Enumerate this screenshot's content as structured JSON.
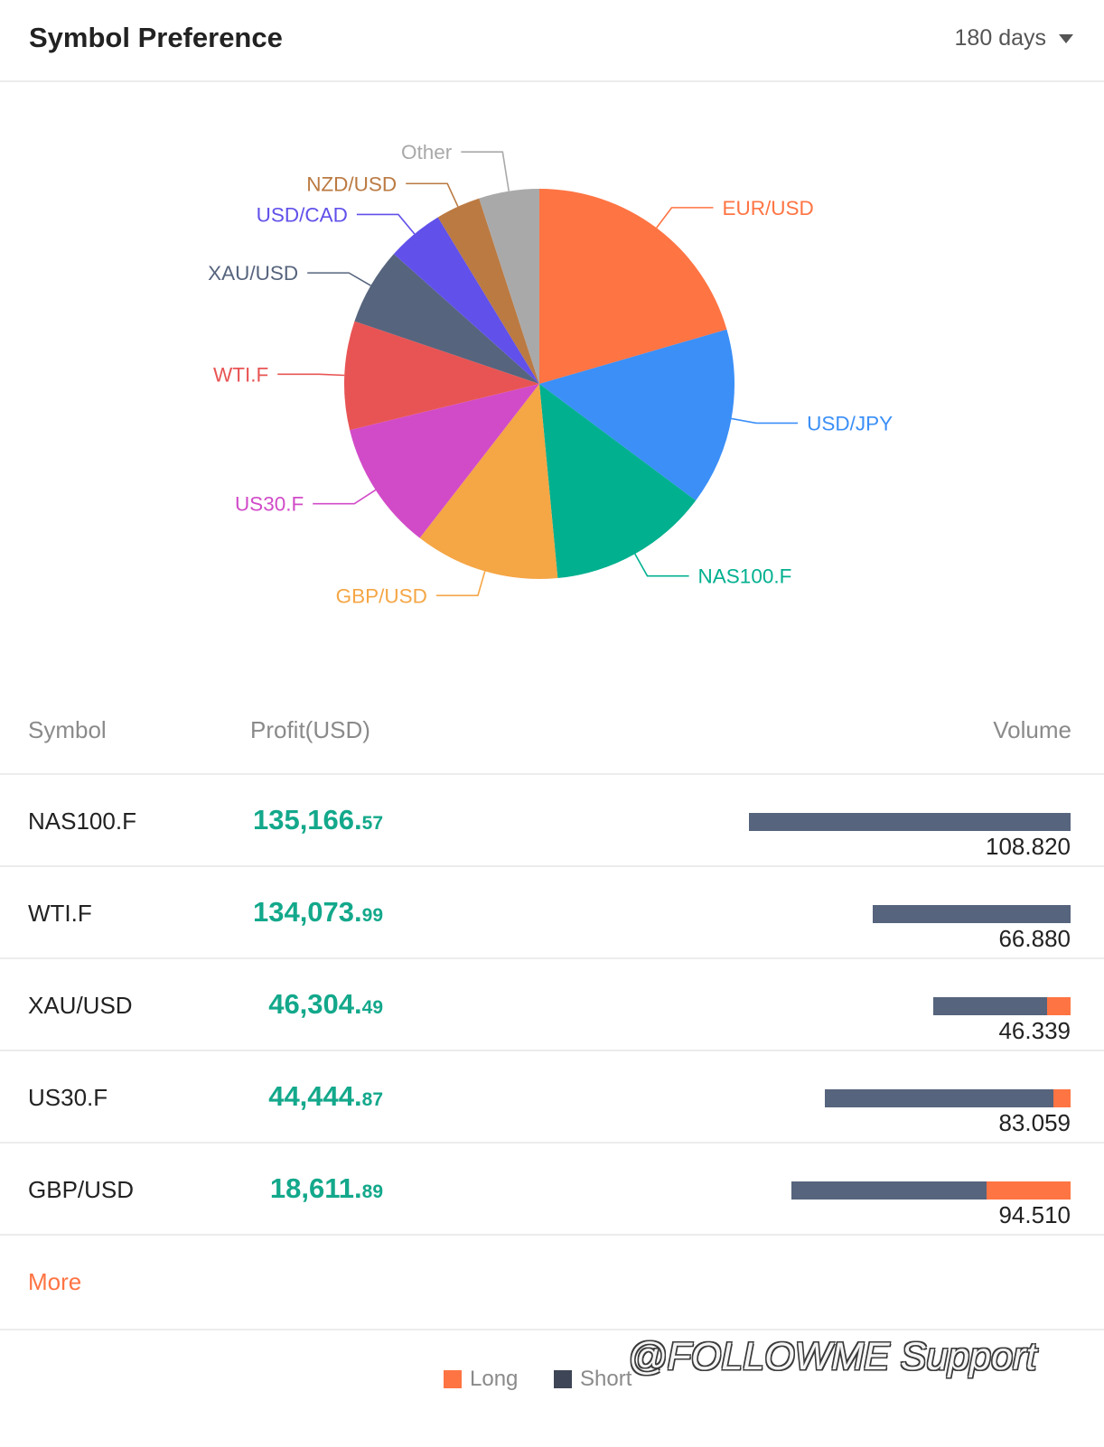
{
  "header": {
    "title": "Symbol Preference",
    "period": "180 days"
  },
  "chart_data": {
    "type": "pie",
    "slices": [
      {
        "label": "EUR/USD",
        "value": 20.5,
        "color": "#ff7443"
      },
      {
        "label": "USD/JPY",
        "value": 14.7,
        "color": "#3b8ff7"
      },
      {
        "label": "NAS100.F",
        "value": 13.3,
        "color": "#00b08f"
      },
      {
        "label": "GBP/USD",
        "value": 12.0,
        "color": "#f5a645"
      },
      {
        "label": "US30.F",
        "value": 10.7,
        "color": "#d14bc8"
      },
      {
        "label": "WTI.F",
        "value": 9.0,
        "color": "#e85454"
      },
      {
        "label": "XAU/USD",
        "value": 6.4,
        "color": "#56647d"
      },
      {
        "label": "USD/CAD",
        "value": 4.7,
        "color": "#6151ea"
      },
      {
        "label": "NZD/USD",
        "value": 3.7,
        "color": "#bb7a42"
      },
      {
        "label": "Other",
        "value": 5.0,
        "color": "#a9a9a9"
      }
    ]
  },
  "table": {
    "headers": {
      "symbol": "Symbol",
      "profit": "Profit(USD)",
      "volume": "Volume"
    },
    "rows": [
      {
        "symbol": "NAS100.F",
        "profit_int": "135,166.",
        "profit_dec": "57",
        "volume": "108.820",
        "short_frac": 1.0,
        "long_frac": 0.0
      },
      {
        "symbol": "WTI.F",
        "profit_int": "134,073.",
        "profit_dec": "99",
        "volume": "66.880",
        "short_frac": 1.0,
        "long_frac": 0.0
      },
      {
        "symbol": "XAU/USD",
        "profit_int": "46,304.",
        "profit_dec": "49",
        "volume": "46.339",
        "short_frac": 0.83,
        "long_frac": 0.17
      },
      {
        "symbol": "US30.F",
        "profit_int": "44,444.",
        "profit_dec": "87",
        "volume": "83.059",
        "short_frac": 0.93,
        "long_frac": 0.07
      },
      {
        "symbol": "GBP/USD",
        "profit_int": "18,611.",
        "profit_dec": "89",
        "volume": "94.510",
        "short_frac": 0.7,
        "long_frac": 0.3
      }
    ],
    "max_volume": 108.82,
    "long_color": "#ff7443",
    "short_color": "#56647d"
  },
  "more_label": "More",
  "legend": {
    "long": "Long",
    "short": "Short"
  },
  "watermark": "@FOLLOWME Support"
}
